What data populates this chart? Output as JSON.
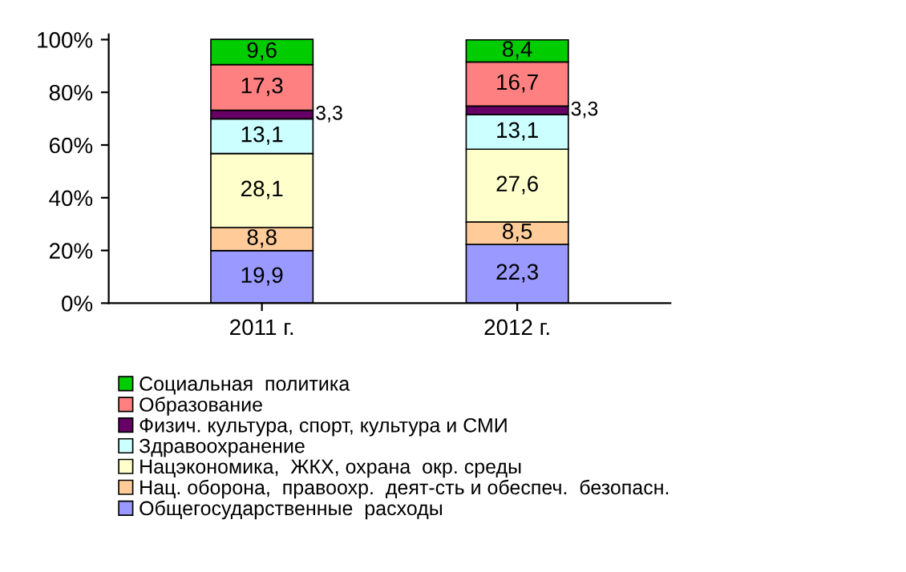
{
  "chart_data": {
    "type": "bar",
    "stacked": true,
    "categories": [
      "2011 г.",
      "2012 г."
    ],
    "series": [
      {
        "name": "Общегосударственные  расходы",
        "color": "#9999ff",
        "values": [
          19.9,
          22.3
        ],
        "value_labels": [
          "19,9",
          "22,3"
        ]
      },
      {
        "name": "Нац. оборона,  правоохр.  деят-сть и обеспеч.  безопасн.",
        "color": "#ffcc99",
        "values": [
          8.8,
          8.5
        ],
        "value_labels": [
          "8,8",
          "8,5"
        ]
      },
      {
        "name": "Нацэкономика,  ЖКХ, охрана  окр. среды",
        "color": "#ffffcc",
        "values": [
          28.1,
          27.6
        ],
        "value_labels": [
          "28,1",
          "27,6"
        ]
      },
      {
        "name": "Здравоохранение",
        "color": "#ccffff",
        "values": [
          13.1,
          13.1
        ],
        "value_labels": [
          "13,1",
          "13,1"
        ]
      },
      {
        "name": "Физич. культура, спорт, культура и СМИ",
        "color": "#660066",
        "values": [
          3.3,
          3.3
        ],
        "value_labels": [
          "3,3",
          "3,3"
        ]
      },
      {
        "name": "Образование",
        "color": "#ff8080",
        "values": [
          17.3,
          16.7
        ],
        "value_labels": [
          "17,3",
          "16,7"
        ]
      },
      {
        "name": "Социальная  политика",
        "color": "#00cc00",
        "values": [
          9.6,
          8.4
        ],
        "value_labels": [
          "9,6",
          "8,4"
        ]
      }
    ],
    "ylim": [
      0,
      102
    ],
    "yticks": [
      {
        "value": 0,
        "label": "0%"
      },
      {
        "value": 20,
        "label": "20%"
      },
      {
        "value": 40,
        "label": "40%"
      },
      {
        "value": 60,
        "label": "60%"
      },
      {
        "value": 80,
        "label": "80%"
      },
      {
        "value": 100,
        "label": "100%"
      }
    ],
    "grid": false,
    "legend": "bottom"
  }
}
